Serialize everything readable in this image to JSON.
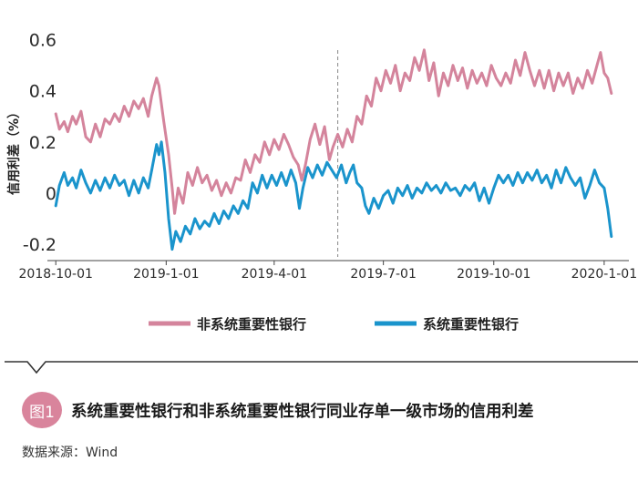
{
  "chart_data": {
    "type": "line",
    "ylabel": "信用利差（%）",
    "ylim": [
      -0.25,
      0.62
    ],
    "yticks": [
      "0.6",
      "0.4",
      "0.2",
      "0",
      "-0.2"
    ],
    "ytick_values": [
      0.6,
      0.4,
      0.2,
      0,
      -0.2
    ],
    "xlim": [
      "2018-09-24",
      "2020-01-14"
    ],
    "xticks": [
      "2018-10-01",
      "2019-1-01",
      "2019-4-01",
      "2019-7-01",
      "2019-10-01",
      "2020-1-01"
    ],
    "xtick_dates": [
      "2018-10-01",
      "2019-01-01",
      "2019-04-01",
      "2019-07-01",
      "2019-10-01",
      "2020-01-01"
    ],
    "vline_date": "2019-05-24",
    "series": [
      {
        "name": "非系统重要性银行",
        "color": "#d4849c",
        "points": [
          [
            "2018-10-01",
            0.31
          ],
          [
            "2018-10-04",
            0.25
          ],
          [
            "2018-10-08",
            0.28
          ],
          [
            "2018-10-11",
            0.24
          ],
          [
            "2018-10-15",
            0.3
          ],
          [
            "2018-10-18",
            0.27
          ],
          [
            "2018-10-22",
            0.32
          ],
          [
            "2018-10-26",
            0.22
          ],
          [
            "2018-10-30",
            0.2
          ],
          [
            "2018-11-03",
            0.27
          ],
          [
            "2018-11-07",
            0.22
          ],
          [
            "2018-11-11",
            0.29
          ],
          [
            "2018-11-15",
            0.27
          ],
          [
            "2018-11-19",
            0.31
          ],
          [
            "2018-11-23",
            0.28
          ],
          [
            "2018-11-27",
            0.34
          ],
          [
            "2018-12-01",
            0.3
          ],
          [
            "2018-12-05",
            0.36
          ],
          [
            "2018-12-09",
            0.33
          ],
          [
            "2018-12-13",
            0.37
          ],
          [
            "2018-12-17",
            0.3
          ],
          [
            "2018-12-20",
            0.38
          ],
          [
            "2018-12-24",
            0.45
          ],
          [
            "2018-12-26",
            0.42
          ],
          [
            "2018-12-30",
            0.28
          ],
          [
            "2019-01-03",
            0.15
          ],
          [
            "2019-01-06",
            0.02
          ],
          [
            "2019-01-08",
            -0.08
          ],
          [
            "2019-01-11",
            0.02
          ],
          [
            "2019-01-15",
            -0.04
          ],
          [
            "2019-01-19",
            0.08
          ],
          [
            "2019-01-23",
            0.03
          ],
          [
            "2019-01-27",
            0.1
          ],
          [
            "2019-01-31",
            0.04
          ],
          [
            "2019-02-04",
            0.07
          ],
          [
            "2019-02-08",
            0.01
          ],
          [
            "2019-02-12",
            0.05
          ],
          [
            "2019-02-16",
            -0.01
          ],
          [
            "2019-02-20",
            0.04
          ],
          [
            "2019-02-24",
            0.0
          ],
          [
            "2019-02-28",
            0.06
          ],
          [
            "2019-03-04",
            0.05
          ],
          [
            "2019-03-08",
            0.13
          ],
          [
            "2019-03-12",
            0.08
          ],
          [
            "2019-03-16",
            0.15
          ],
          [
            "2019-03-20",
            0.12
          ],
          [
            "2019-03-24",
            0.2
          ],
          [
            "2019-03-28",
            0.15
          ],
          [
            "2019-04-01",
            0.21
          ],
          [
            "2019-04-05",
            0.17
          ],
          [
            "2019-04-09",
            0.23
          ],
          [
            "2019-04-13",
            0.19
          ],
          [
            "2019-04-17",
            0.14
          ],
          [
            "2019-04-21",
            0.11
          ],
          [
            "2019-04-24",
            0.05
          ],
          [
            "2019-04-27",
            0.11
          ],
          [
            "2019-05-01",
            0.21
          ],
          [
            "2019-05-05",
            0.27
          ],
          [
            "2019-05-09",
            0.19
          ],
          [
            "2019-05-13",
            0.26
          ],
          [
            "2019-05-17",
            0.13
          ],
          [
            "2019-05-20",
            0.18
          ],
          [
            "2019-05-24",
            0.23
          ],
          [
            "2019-05-28",
            0.18
          ],
          [
            "2019-06-01",
            0.25
          ],
          [
            "2019-06-05",
            0.2
          ],
          [
            "2019-06-09",
            0.3
          ],
          [
            "2019-06-13",
            0.27
          ],
          [
            "2019-06-17",
            0.38
          ],
          [
            "2019-06-21",
            0.34
          ],
          [
            "2019-06-25",
            0.45
          ],
          [
            "2019-06-29",
            0.4
          ],
          [
            "2019-07-03",
            0.48
          ],
          [
            "2019-07-07",
            0.43
          ],
          [
            "2019-07-11",
            0.5
          ],
          [
            "2019-07-15",
            0.4
          ],
          [
            "2019-07-19",
            0.47
          ],
          [
            "2019-07-23",
            0.44
          ],
          [
            "2019-07-27",
            0.53
          ],
          [
            "2019-07-31",
            0.48
          ],
          [
            "2019-08-04",
            0.56
          ],
          [
            "2019-08-08",
            0.44
          ],
          [
            "2019-08-12",
            0.51
          ],
          [
            "2019-08-16",
            0.38
          ],
          [
            "2019-08-20",
            0.47
          ],
          [
            "2019-08-24",
            0.42
          ],
          [
            "2019-08-28",
            0.5
          ],
          [
            "2019-09-01",
            0.44
          ],
          [
            "2019-09-05",
            0.49
          ],
          [
            "2019-09-09",
            0.41
          ],
          [
            "2019-09-13",
            0.48
          ],
          [
            "2019-09-17",
            0.43
          ],
          [
            "2019-09-21",
            0.47
          ],
          [
            "2019-09-25",
            0.42
          ],
          [
            "2019-09-29",
            0.5
          ],
          [
            "2019-10-03",
            0.45
          ],
          [
            "2019-10-07",
            0.42
          ],
          [
            "2019-10-11",
            0.47
          ],
          [
            "2019-10-15",
            0.43
          ],
          [
            "2019-10-19",
            0.52
          ],
          [
            "2019-10-23",
            0.46
          ],
          [
            "2019-10-27",
            0.55
          ],
          [
            "2019-10-31",
            0.48
          ],
          [
            "2019-11-04",
            0.42
          ],
          [
            "2019-11-08",
            0.48
          ],
          [
            "2019-11-12",
            0.41
          ],
          [
            "2019-11-16",
            0.48
          ],
          [
            "2019-11-20",
            0.4
          ],
          [
            "2019-11-24",
            0.47
          ],
          [
            "2019-11-28",
            0.42
          ],
          [
            "2019-12-02",
            0.47
          ],
          [
            "2019-12-06",
            0.39
          ],
          [
            "2019-12-10",
            0.45
          ],
          [
            "2019-12-14",
            0.41
          ],
          [
            "2019-12-18",
            0.48
          ],
          [
            "2019-12-22",
            0.43
          ],
          [
            "2019-12-26",
            0.5
          ],
          [
            "2019-12-29",
            0.55
          ],
          [
            "2020-01-01",
            0.47
          ],
          [
            "2020-01-04",
            0.45
          ],
          [
            "2020-01-07",
            0.39
          ]
        ]
      },
      {
        "name": "系统重要性银行",
        "color": "#1a94cc",
        "points": [
          [
            "2018-10-01",
            -0.05
          ],
          [
            "2018-10-04",
            0.03
          ],
          [
            "2018-10-08",
            0.08
          ],
          [
            "2018-10-11",
            0.03
          ],
          [
            "2018-10-15",
            0.06
          ],
          [
            "2018-10-18",
            0.02
          ],
          [
            "2018-10-22",
            0.09
          ],
          [
            "2018-10-26",
            0.04
          ],
          [
            "2018-10-30",
            0.0
          ],
          [
            "2018-11-03",
            0.05
          ],
          [
            "2018-11-07",
            0.01
          ],
          [
            "2018-11-11",
            0.06
          ],
          [
            "2018-11-15",
            0.02
          ],
          [
            "2018-11-19",
            0.07
          ],
          [
            "2018-11-23",
            0.03
          ],
          [
            "2018-11-27",
            0.05
          ],
          [
            "2018-12-01",
            -0.01
          ],
          [
            "2018-12-05",
            0.05
          ],
          [
            "2018-12-09",
            0.0
          ],
          [
            "2018-12-13",
            0.06
          ],
          [
            "2018-12-17",
            0.02
          ],
          [
            "2018-12-20",
            0.09
          ],
          [
            "2018-12-24",
            0.19
          ],
          [
            "2018-12-26",
            0.15
          ],
          [
            "2018-12-28",
            0.2
          ],
          [
            "2018-12-31",
            0.08
          ],
          [
            "2019-01-03",
            -0.1
          ],
          [
            "2019-01-06",
            -0.22
          ],
          [
            "2019-01-09",
            -0.15
          ],
          [
            "2019-01-13",
            -0.19
          ],
          [
            "2019-01-17",
            -0.13
          ],
          [
            "2019-01-21",
            -0.16
          ],
          [
            "2019-01-25",
            -0.1
          ],
          [
            "2019-01-29",
            -0.14
          ],
          [
            "2019-02-02",
            -0.11
          ],
          [
            "2019-02-06",
            -0.13
          ],
          [
            "2019-02-10",
            -0.08
          ],
          [
            "2019-02-14",
            -0.12
          ],
          [
            "2019-02-18",
            -0.07
          ],
          [
            "2019-02-22",
            -0.1
          ],
          [
            "2019-02-26",
            -0.05
          ],
          [
            "2019-03-02",
            -0.08
          ],
          [
            "2019-03-06",
            -0.03
          ],
          [
            "2019-03-10",
            -0.06
          ],
          [
            "2019-03-14",
            0.04
          ],
          [
            "2019-03-18",
            0.0
          ],
          [
            "2019-03-22",
            0.07
          ],
          [
            "2019-03-26",
            0.02
          ],
          [
            "2019-03-30",
            0.07
          ],
          [
            "2019-04-03",
            0.03
          ],
          [
            "2019-04-07",
            0.08
          ],
          [
            "2019-04-11",
            0.03
          ],
          [
            "2019-04-15",
            0.09
          ],
          [
            "2019-04-19",
            0.04
          ],
          [
            "2019-04-22",
            -0.06
          ],
          [
            "2019-04-25",
            0.02
          ],
          [
            "2019-04-29",
            0.1
          ],
          [
            "2019-05-03",
            0.06
          ],
          [
            "2019-05-07",
            0.11
          ],
          [
            "2019-05-11",
            0.07
          ],
          [
            "2019-05-15",
            0.12
          ],
          [
            "2019-05-19",
            0.09
          ],
          [
            "2019-05-23",
            0.06
          ],
          [
            "2019-05-27",
            0.11
          ],
          [
            "2019-05-31",
            0.04
          ],
          [
            "2019-06-03",
            0.08
          ],
          [
            "2019-06-06",
            0.11
          ],
          [
            "2019-06-09",
            0.04
          ],
          [
            "2019-06-13",
            0.02
          ],
          [
            "2019-06-16",
            -0.05
          ],
          [
            "2019-06-19",
            -0.08
          ],
          [
            "2019-06-23",
            -0.02
          ],
          [
            "2019-06-27",
            -0.06
          ],
          [
            "2019-07-01",
            -0.01
          ],
          [
            "2019-07-05",
            0.01
          ],
          [
            "2019-07-09",
            -0.04
          ],
          [
            "2019-07-13",
            0.02
          ],
          [
            "2019-07-17",
            -0.01
          ],
          [
            "2019-07-21",
            0.03
          ],
          [
            "2019-07-25",
            -0.02
          ],
          [
            "2019-07-29",
            0.02
          ],
          [
            "2019-08-02",
            0.0
          ],
          [
            "2019-08-06",
            0.04
          ],
          [
            "2019-08-10",
            0.01
          ],
          [
            "2019-08-14",
            0.03
          ],
          [
            "2019-08-18",
            0.0
          ],
          [
            "2019-08-22",
            0.04
          ],
          [
            "2019-08-26",
            0.01
          ],
          [
            "2019-08-30",
            0.02
          ],
          [
            "2019-09-03",
            -0.01
          ],
          [
            "2019-09-07",
            0.03
          ],
          [
            "2019-09-11",
            0.01
          ],
          [
            "2019-09-15",
            0.04
          ],
          [
            "2019-09-19",
            -0.03
          ],
          [
            "2019-09-23",
            0.02
          ],
          [
            "2019-09-27",
            -0.04
          ],
          [
            "2019-10-01",
            0.02
          ],
          [
            "2019-10-05",
            0.07
          ],
          [
            "2019-10-09",
            0.04
          ],
          [
            "2019-10-13",
            0.07
          ],
          [
            "2019-10-17",
            0.03
          ],
          [
            "2019-10-21",
            0.08
          ],
          [
            "2019-10-25",
            0.04
          ],
          [
            "2019-10-29",
            0.08
          ],
          [
            "2019-11-02",
            0.05
          ],
          [
            "2019-11-06",
            0.09
          ],
          [
            "2019-11-10",
            0.04
          ],
          [
            "2019-11-14",
            0.07
          ],
          [
            "2019-11-18",
            0.02
          ],
          [
            "2019-11-22",
            0.09
          ],
          [
            "2019-11-26",
            0.04
          ],
          [
            "2019-11-30",
            0.1
          ],
          [
            "2019-12-04",
            0.06
          ],
          [
            "2019-12-08",
            0.03
          ],
          [
            "2019-12-12",
            0.06
          ],
          [
            "2019-12-16",
            -0.02
          ],
          [
            "2019-12-20",
            0.03
          ],
          [
            "2019-12-24",
            0.09
          ],
          [
            "2019-12-28",
            0.04
          ],
          [
            "2020-01-01",
            0.02
          ],
          [
            "2020-01-04",
            -0.06
          ],
          [
            "2020-01-07",
            -0.17
          ]
        ]
      }
    ]
  },
  "caption": {
    "badge": "图1",
    "title": "系统重要性银行和非系统重要性银行同业存单一级市场的信用利差"
  },
  "source": "数据来源：Wind",
  "colors": {
    "pink": "#d4849c",
    "blue": "#1a94cc",
    "badge": "#d9849c"
  }
}
